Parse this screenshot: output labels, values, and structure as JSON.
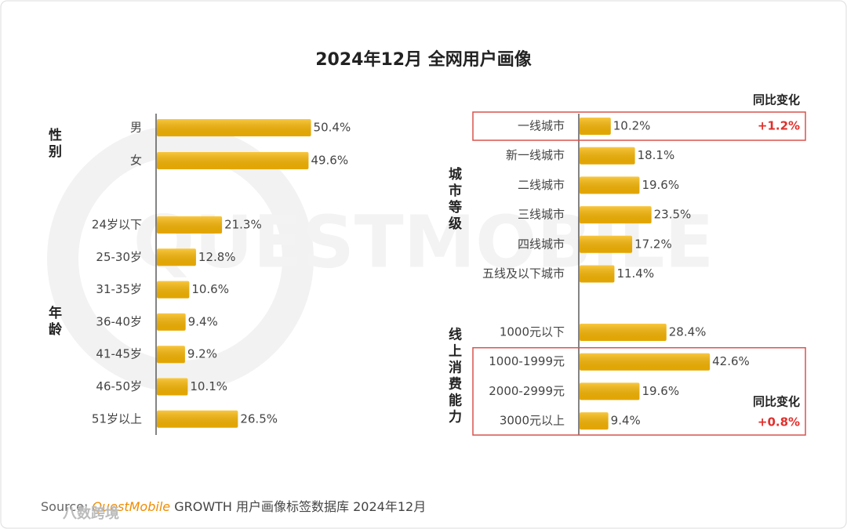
{
  "title": "2024年12月 全网用户画像",
  "watermark": "QUESTMOBILE",
  "corner_watermark": "八数跨境",
  "source": {
    "prefix": "Source:",
    "brand": "QuestMobile",
    "text": "GROWTH 用户画像标签数据库 2024年12月"
  },
  "chart_data": [
    {
      "type": "bar",
      "orientation": "horizontal",
      "label": "性别",
      "color": "#f7b500",
      "categories": [
        "男",
        "女"
      ],
      "values": [
        50.4,
        49.6
      ],
      "value_labels": [
        "50.4%",
        "49.6%"
      ]
    },
    {
      "type": "bar",
      "orientation": "horizontal",
      "label": "年龄",
      "color": "#f7b500",
      "categories": [
        "24岁以下",
        "25-30岁",
        "31-35岁",
        "36-40岁",
        "41-45岁",
        "46-50岁",
        "51岁以上"
      ],
      "values": [
        21.3,
        12.8,
        10.6,
        9.4,
        9.2,
        10.1,
        26.5
      ],
      "value_labels": [
        "21.3%",
        "12.8%",
        "10.6%",
        "9.4%",
        "9.2%",
        "10.1%",
        "26.5%"
      ]
    },
    {
      "type": "bar",
      "orientation": "horizontal",
      "label": "城市等级",
      "color": "#f7b500",
      "categories": [
        "一线城市",
        "新一线城市",
        "二线城市",
        "三线城市",
        "四线城市",
        "五线及以下城市"
      ],
      "values": [
        10.2,
        18.1,
        19.6,
        23.5,
        17.2,
        11.4
      ],
      "value_labels": [
        "10.2%",
        "18.1%",
        "19.6%",
        "23.5%",
        "17.2%",
        "11.4%"
      ],
      "highlight_rows": [
        0
      ],
      "annotation": {
        "title": "同比变化",
        "text": "+1.2%"
      }
    },
    {
      "type": "bar",
      "orientation": "horizontal",
      "label": "线上消费能力",
      "color": "#f7b500",
      "categories": [
        "1000元以下",
        "1000-1999元",
        "2000-2999元",
        "3000元以上"
      ],
      "values": [
        28.4,
        42.6,
        19.6,
        9.4
      ],
      "value_labels": [
        "28.4%",
        "42.6%",
        "19.6%",
        "9.4%"
      ],
      "highlight_rows": [
        1,
        2,
        3
      ],
      "annotation": {
        "title": "同比变化",
        "text": "+0.8%"
      }
    }
  ]
}
